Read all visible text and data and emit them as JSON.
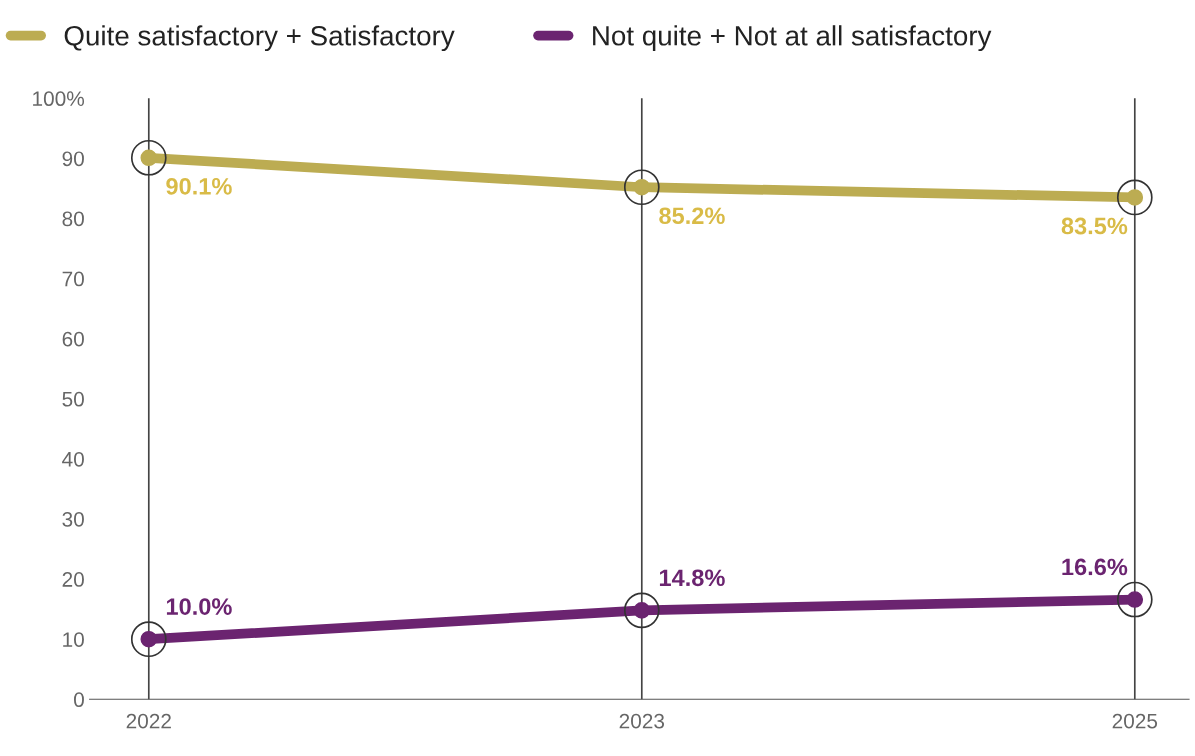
{
  "chart_data": {
    "type": "line",
    "categories": [
      "2022",
      "2023",
      "2025"
    ],
    "series": [
      {
        "name": "Quite satisfactory + Satisfactory",
        "color": "#bcac52",
        "values": [
          90.1,
          85.2,
          83.5
        ],
        "value_labels": [
          "90.1%",
          "85.2%",
          "83.5%"
        ]
      },
      {
        "name": "Not quite + Not at all satisfactory",
        "color": "#6b2470",
        "values": [
          10.0,
          14.8,
          16.6
        ],
        "value_labels": [
          "10.0%",
          "14.8%",
          "16.6%"
        ]
      }
    ],
    "ylim": [
      0,
      100
    ],
    "yticks": [
      0,
      10,
      20,
      30,
      40,
      50,
      60,
      70,
      80,
      90,
      {
        "value": 100,
        "label": "100%"
      }
    ],
    "grid": "x",
    "legend": "top left",
    "marker": "circle",
    "line_style": "solid"
  }
}
